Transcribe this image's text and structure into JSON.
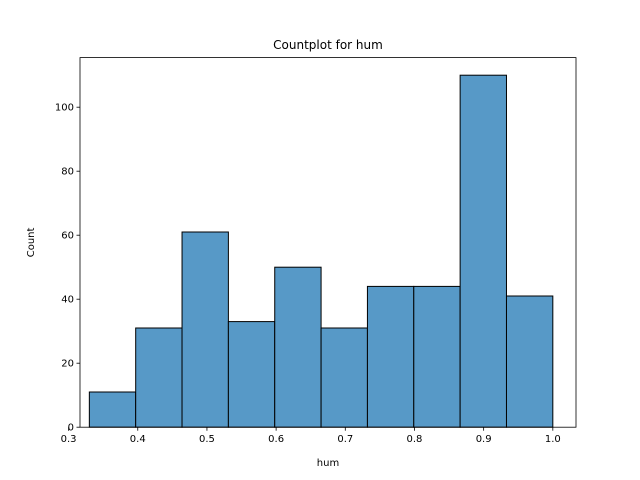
{
  "chart_data": {
    "type": "bar",
    "title": "Countplot for hum",
    "xlabel": "hum",
    "ylabel": "Count",
    "bins": [
      {
        "start": 0.33,
        "end": 0.397,
        "count": 11
      },
      {
        "start": 0.397,
        "end": 0.464,
        "count": 31
      },
      {
        "start": 0.464,
        "end": 0.531,
        "count": 61
      },
      {
        "start": 0.531,
        "end": 0.598,
        "count": 33
      },
      {
        "start": 0.598,
        "end": 0.665,
        "count": 50
      },
      {
        "start": 0.665,
        "end": 0.732,
        "count": 31
      },
      {
        "start": 0.732,
        "end": 0.799,
        "count": 44
      },
      {
        "start": 0.799,
        "end": 0.866,
        "count": 44
      },
      {
        "start": 0.866,
        "end": 0.933,
        "count": 110
      },
      {
        "start": 0.933,
        "end": 1.0,
        "count": 41
      }
    ],
    "xlim": [
      0.3165,
      1.0335
    ],
    "ylim": [
      0,
      115.5
    ],
    "xticks": [
      {
        "value": 0.3,
        "label": "0.3"
      },
      {
        "value": 0.4,
        "label": "0.4"
      },
      {
        "value": 0.5,
        "label": "0.5"
      },
      {
        "value": 0.6,
        "label": "0.6"
      },
      {
        "value": 0.7,
        "label": "0.7"
      },
      {
        "value": 0.8,
        "label": "0.8"
      },
      {
        "value": 0.9,
        "label": "0.9"
      },
      {
        "value": 1.0,
        "label": "1.0"
      }
    ],
    "yticks": [
      {
        "value": 0,
        "label": "0"
      },
      {
        "value": 20,
        "label": "20"
      },
      {
        "value": 40,
        "label": "40"
      },
      {
        "value": 60,
        "label": "60"
      },
      {
        "value": 80,
        "label": "80"
      },
      {
        "value": 100,
        "label": "100"
      }
    ],
    "bar_color": "#5799c7",
    "edge_color": "#000000",
    "grid": false,
    "legend": false
  }
}
